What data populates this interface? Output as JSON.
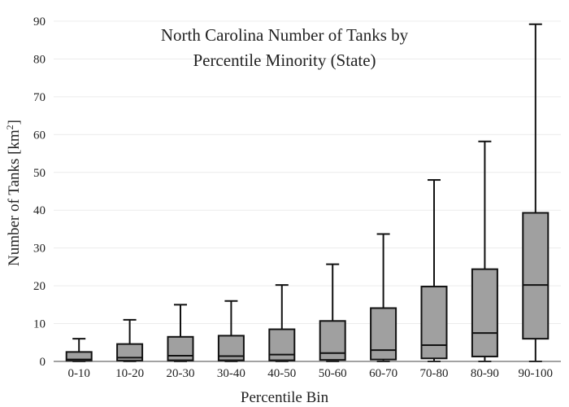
{
  "chart_data": {
    "type": "box",
    "title_lines": [
      "North Carolina Number of Tanks by",
      "Percentile Minority (State)"
    ],
    "xlabel": "Percentile Bin",
    "ylabel_main": "Number of Tanks  [km",
    "ylabel_sup": "2",
    "ylabel_end": "]",
    "ylim": [
      0,
      90
    ],
    "yticks": [
      "0",
      "10",
      "20",
      "30",
      "40",
      "50",
      "60",
      "70",
      "80",
      "90"
    ],
    "grid": true,
    "categories": [
      "0-10",
      "10-20",
      "20-30",
      "30-40",
      "40-50",
      "50-60",
      "60-70",
      "70-80",
      "80-90",
      "90-100"
    ],
    "boxes": [
      {
        "min": 0,
        "q1": 0.1,
        "median": 0.5,
        "q3": 2.5,
        "max": 6.0
      },
      {
        "min": 0,
        "q1": 0.2,
        "median": 1.0,
        "q3": 4.6,
        "max": 11.0
      },
      {
        "min": 0,
        "q1": 0.3,
        "median": 1.5,
        "q3": 6.5,
        "max": 15.0
      },
      {
        "min": 0,
        "q1": 0.3,
        "median": 1.4,
        "q3": 6.8,
        "max": 16.0
      },
      {
        "min": 0,
        "q1": 0.3,
        "median": 1.8,
        "q3": 8.5,
        "max": 20.2
      },
      {
        "min": 0,
        "q1": 0.4,
        "median": 2.2,
        "q3": 10.7,
        "max": 25.7
      },
      {
        "min": 0,
        "q1": 0.5,
        "median": 3.0,
        "q3": 14.1,
        "max": 33.7
      },
      {
        "min": 0,
        "q1": 0.8,
        "median": 4.3,
        "q3": 19.8,
        "max": 48.0
      },
      {
        "min": 0,
        "q1": 1.3,
        "median": 7.5,
        "q3": 24.4,
        "max": 58.2
      },
      {
        "min": 0,
        "q1": 6.0,
        "median": 20.2,
        "q3": 39.3,
        "max": 89.2
      }
    ]
  }
}
